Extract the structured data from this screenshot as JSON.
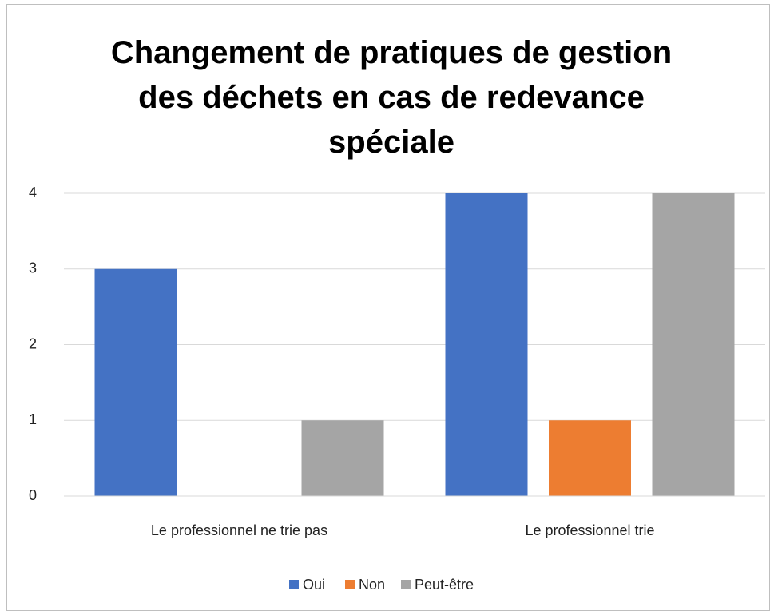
{
  "chart_data": {
    "type": "bar",
    "title": "Changement de pratiques de gestion des déchets en cas de redevance spéciale",
    "categories": [
      "Le professionnel ne trie pas",
      "Le professionnel trie"
    ],
    "series": [
      {
        "name": "Oui",
        "color": "#4472c4",
        "values": [
          3,
          4
        ]
      },
      {
        "name": "Non",
        "color": "#ed7d31",
        "values": [
          0,
          1
        ]
      },
      {
        "name": "Peut-être",
        "color": "#a5a5a5",
        "values": [
          1,
          4
        ]
      }
    ],
    "ylim": [
      0,
      4
    ],
    "yticks": [
      0,
      1,
      2,
      3,
      4
    ],
    "grid": true,
    "legend": "bottom"
  }
}
